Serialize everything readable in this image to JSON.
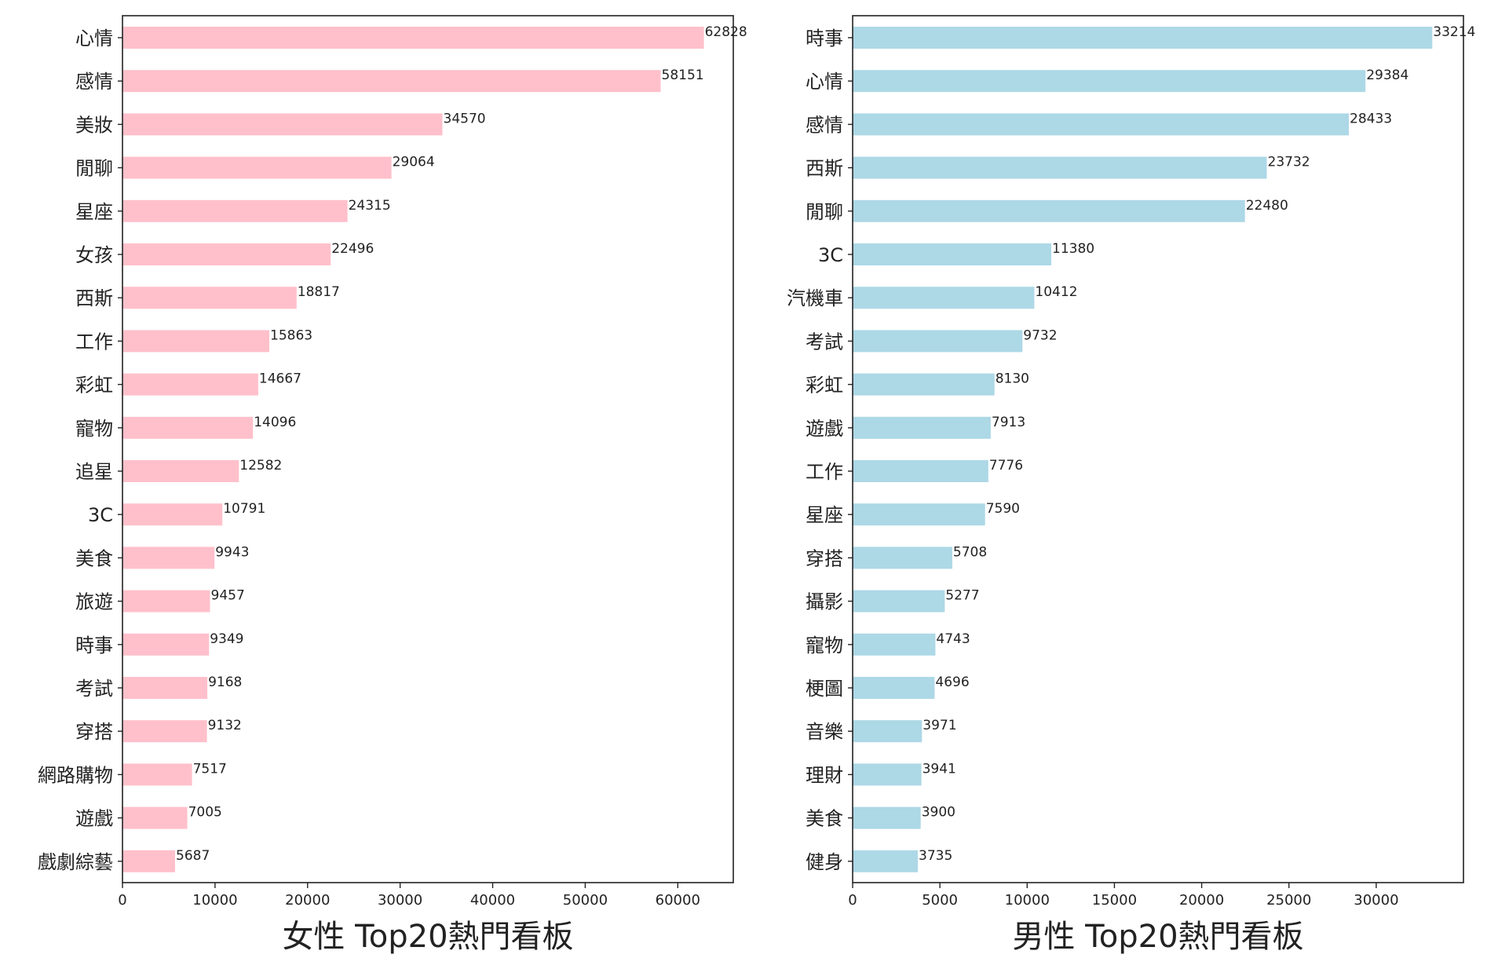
{
  "chart_data": [
    {
      "type": "bar",
      "orientation": "horizontal",
      "xlabel": "女性  Top20熱門看板",
      "color": "#FFC0CB",
      "xlim": [
        0,
        66000
      ],
      "xticks": [
        0,
        10000,
        20000,
        30000,
        40000,
        50000,
        60000
      ],
      "categories": [
        "心情",
        "感情",
        "美妝",
        "閒聊",
        "星座",
        "女孩",
        "西斯",
        "工作",
        "彩虹",
        "寵物",
        "追星",
        "3C",
        "美食",
        "旅遊",
        "時事",
        "考試",
        "穿搭",
        "網路購物",
        "遊戲",
        "戲劇綜藝"
      ],
      "values": [
        62828,
        58151,
        34570,
        29064,
        24315,
        22496,
        18817,
        15863,
        14667,
        14096,
        12582,
        10791,
        9943,
        9457,
        9349,
        9168,
        9132,
        7517,
        7005,
        5687
      ]
    },
    {
      "type": "bar",
      "orientation": "horizontal",
      "xlabel": "男性  Top20熱門看板",
      "color": "#ADD8E6",
      "xlim": [
        0,
        35000
      ],
      "xticks": [
        0,
        5000,
        10000,
        15000,
        20000,
        25000,
        30000
      ],
      "categories": [
        "時事",
        "心情",
        "感情",
        "西斯",
        "閒聊",
        "3C",
        "汽機車",
        "考試",
        "彩虹",
        "遊戲",
        "工作",
        "星座",
        "穿搭",
        "攝影",
        "寵物",
        "梗圖",
        "音樂",
        "理財",
        "美食",
        "健身"
      ],
      "values": [
        33214,
        29384,
        28433,
        23732,
        22480,
        11380,
        10412,
        9732,
        8130,
        7913,
        7776,
        7590,
        5708,
        5277,
        4743,
        4696,
        3971,
        3941,
        3900,
        3735
      ]
    }
  ]
}
